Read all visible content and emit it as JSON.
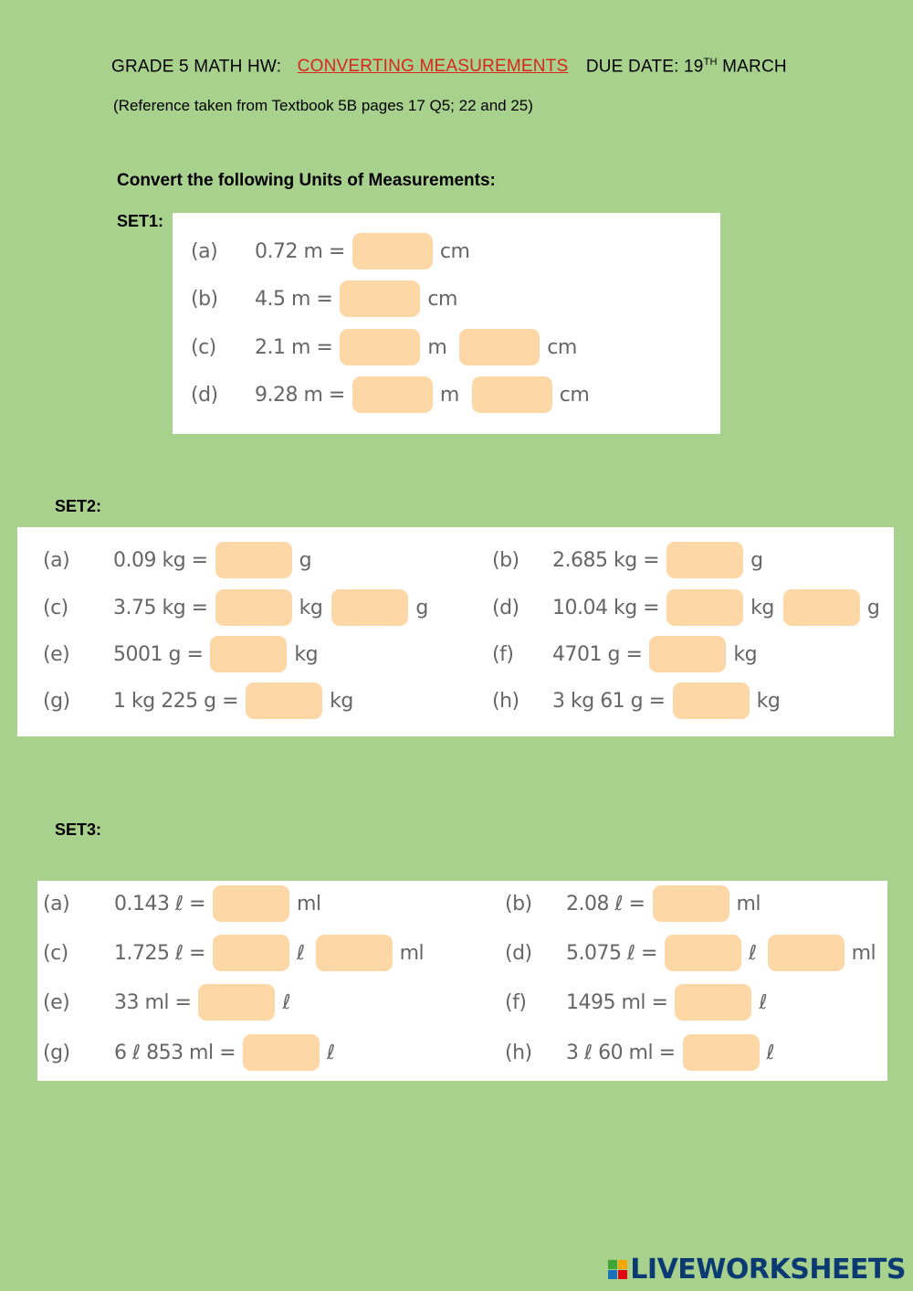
{
  "header": {
    "prefix": "GRADE 5 MATH HW:",
    "topic": "CONVERTING MEASUREMENTS",
    "due_prefix": "DUE DATE: 19",
    "due_sup": "TH",
    "due_suffix": " MARCH"
  },
  "reference": "(Reference taken from Textbook 5B pages 17 Q5; 22 and 25)",
  "instruction": "Convert the following Units of Measurements:",
  "set1": {
    "label": "SET1:",
    "items": [
      {
        "letter": "(a)",
        "expr": "0.72 m =",
        "units": [
          "cm"
        ]
      },
      {
        "letter": "(b)",
        "expr": "4.5 m =",
        "units": [
          "cm"
        ]
      },
      {
        "letter": "(c)",
        "expr": "2.1 m =",
        "units": [
          "m",
          "cm"
        ]
      },
      {
        "letter": "(d)",
        "expr": "9.28 m =",
        "units": [
          "m",
          "cm"
        ]
      }
    ]
  },
  "set2": {
    "label": "SET2:",
    "items": [
      {
        "letter": "(a)",
        "expr": "0.09 kg =",
        "units": [
          "g"
        ]
      },
      {
        "letter": "(b)",
        "expr": "2.685 kg =",
        "units": [
          "g"
        ]
      },
      {
        "letter": "(c)",
        "expr": "3.75 kg =",
        "units": [
          "kg",
          "g"
        ]
      },
      {
        "letter": "(d)",
        "expr": "10.04 kg =",
        "units": [
          "kg",
          "g"
        ]
      },
      {
        "letter": "(e)",
        "expr": "5001 g =",
        "units": [
          "kg"
        ]
      },
      {
        "letter": "(f)",
        "expr": "4701 g =",
        "units": [
          "kg"
        ]
      },
      {
        "letter": "(g)",
        "expr": "1 kg 225 g =",
        "units": [
          "kg"
        ]
      },
      {
        "letter": "(h)",
        "expr": "3 kg 61 g =",
        "units": [
          "kg"
        ]
      }
    ]
  },
  "set3": {
    "label": "SET3:",
    "items": [
      {
        "letter": "(a)",
        "expr": "0.143 ℓ =",
        "units": [
          "ml"
        ]
      },
      {
        "letter": "(b)",
        "expr": "2.08 ℓ =",
        "units": [
          "ml"
        ]
      },
      {
        "letter": "(c)",
        "expr": "1.725 ℓ =",
        "units": [
          "ℓ",
          "ml"
        ]
      },
      {
        "letter": "(d)",
        "expr": "5.075 ℓ =",
        "units": [
          "ℓ",
          "ml"
        ]
      },
      {
        "letter": "(e)",
        "expr": "33 ml =",
        "units": [
          "ℓ"
        ]
      },
      {
        "letter": "(f)",
        "expr": "1495 ml =",
        "units": [
          "ℓ"
        ]
      },
      {
        "letter": "(g)",
        "expr": "6 ℓ 853 ml =",
        "units": [
          "ℓ"
        ]
      },
      {
        "letter": "(h)",
        "expr": "3 ℓ 60 ml =",
        "units": [
          "ℓ"
        ]
      }
    ]
  },
  "logo": {
    "text": "LIVEWORKSHEETS",
    "colors": [
      "#3fa535",
      "#f7a600",
      "#1d71b8",
      "#e30613"
    ]
  }
}
